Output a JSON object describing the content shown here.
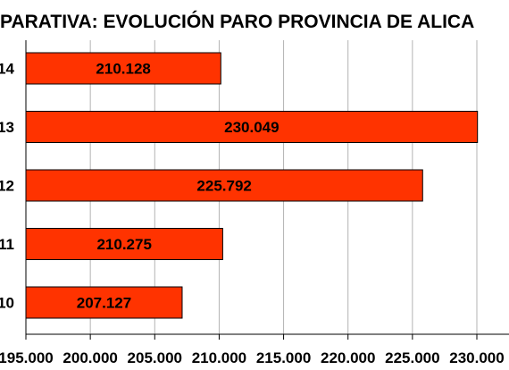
{
  "chart_data": {
    "type": "bar",
    "orientation": "horizontal",
    "title": "PARATIVA:  EVOLUCIÓN PARO PROVINCIA DE ALICA",
    "categories": [
      "14",
      "13",
      "12",
      "11",
      "10"
    ],
    "values": [
      210128,
      230049,
      225792,
      210275,
      207127
    ],
    "value_labels": [
      "210.128",
      "230.049",
      "225.792",
      "210.275",
      "207.127"
    ],
    "xlim": [
      195000,
      230000
    ],
    "x_ticks": [
      195000,
      200000,
      205000,
      210000,
      215000,
      220000,
      225000,
      230000
    ],
    "x_tick_labels": [
      "195.000",
      "200.000",
      "205.000",
      "210.000",
      "215.000",
      "220.000",
      "225.000",
      "230.000"
    ],
    "grid": "vertical",
    "legend": "none",
    "colors": {
      "bar_fill": "#ff3300",
      "bar_stroke": "#000000",
      "grid": "#b3b3b3",
      "axis": "#000000"
    }
  }
}
